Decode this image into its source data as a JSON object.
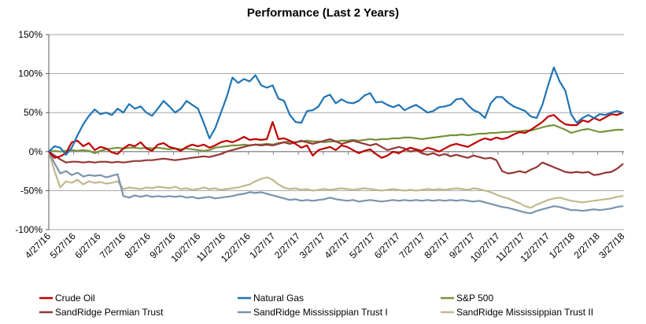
{
  "chart_data": {
    "type": "line",
    "title": "Performance (Last 2 Years)",
    "grid": "horizontal",
    "legend_position": "bottom",
    "x_frequency": "weekly",
    "y_axis": {
      "tick_labels": [
        "150%",
        "100%",
        "50%",
        "0%",
        "-50%",
        "-100%"
      ],
      "tick_values": [
        150,
        100,
        50,
        0,
        -50,
        -100
      ],
      "min": -100,
      "max": 150
    },
    "x_axis": {
      "tick_labels": [
        "4/27/16",
        "5/27/16",
        "6/27/16",
        "7/27/16",
        "8/27/16",
        "9/27/16",
        "10/27/16",
        "11/27/16",
        "12/27/16",
        "1/27/17",
        "2/27/17",
        "3/27/17",
        "4/27/17",
        "5/27/17",
        "6/27/17",
        "7/27/17",
        "8/27/17",
        "9/27/17",
        "10/27/17",
        "11/27/17",
        "12/27/17",
        "1/27/18",
        "2/27/18",
        "3/27/18"
      ]
    },
    "colors": {
      "gridline": "#A6A6A6",
      "x_axis_line": "#808080",
      "y_axis_line": "#595959",
      "text": "#000000"
    },
    "series": [
      {
        "name": "Crude Oil",
        "color": "#C00000",
        "values": [
          0,
          -8,
          -6,
          -2,
          12,
          14,
          7,
          11,
          2,
          6,
          4,
          -1,
          -3,
          4,
          9,
          7,
          12,
          4,
          1,
          9,
          11,
          6,
          4,
          1,
          6,
          9,
          7,
          9,
          5,
          8,
          12,
          14,
          12,
          15,
          19,
          15,
          16,
          15,
          16,
          38,
          16,
          17,
          14,
          10,
          5,
          8,
          -5,
          2,
          4,
          6,
          2,
          8,
          6,
          2,
          -2,
          1,
          3,
          -3,
          -8,
          -5,
          0,
          -2,
          2,
          5,
          3,
          1,
          5,
          3,
          0,
          4,
          8,
          10,
          8,
          6,
          10,
          14,
          17,
          15,
          18,
          16,
          18,
          22,
          25,
          24,
          28,
          33,
          38,
          45,
          47,
          40,
          35,
          34,
          34,
          40,
          38,
          43,
          40,
          44,
          48,
          47,
          50
        ]
      },
      {
        "name": "Natural Gas",
        "color": "#1F74B4",
        "values": [
          0,
          7,
          5,
          -4,
          5,
          21,
          35,
          46,
          54,
          48,
          50,
          47,
          55,
          50,
          61,
          55,
          58,
          50,
          46,
          55,
          65,
          58,
          50,
          55,
          65,
          60,
          55,
          37,
          17,
          30,
          50,
          70,
          95,
          88,
          93,
          90,
          98,
          85,
          82,
          85,
          68,
          65,
          47,
          38,
          37,
          52,
          53,
          58,
          70,
          73,
          62,
          67,
          63,
          62,
          65,
          72,
          75,
          63,
          64,
          60,
          57,
          60,
          53,
          57,
          60,
          55,
          50,
          52,
          57,
          58,
          60,
          67,
          68,
          60,
          53,
          50,
          43,
          62,
          70,
          70,
          63,
          58,
          55,
          52,
          45,
          43,
          60,
          85,
          108,
          90,
          78,
          48,
          37,
          43,
          47,
          43,
          48,
          47,
          50,
          52,
          50
        ]
      },
      {
        "name": "S&P 500",
        "color": "#76933C",
        "values": [
          0,
          1,
          0,
          1,
          2,
          1,
          2,
          1,
          -2,
          1,
          3,
          4,
          5,
          4,
          5,
          5,
          4,
          5,
          4,
          5,
          4,
          3,
          4,
          3,
          4,
          3,
          2,
          1,
          2,
          5,
          6,
          7,
          8,
          8,
          9,
          8,
          9,
          9,
          10,
          9,
          11,
          12,
          13,
          12,
          13,
          14,
          13,
          13,
          12,
          13,
          13,
          14,
          14,
          15,
          14,
          15,
          16,
          15,
          16,
          16,
          17,
          17,
          18,
          18,
          17,
          16,
          17,
          18,
          19,
          20,
          21,
          21,
          22,
          21,
          22,
          23,
          23,
          24,
          24,
          25,
          25,
          26,
          26,
          27,
          27,
          29,
          31,
          33,
          34,
          31,
          28,
          24,
          26,
          28,
          29,
          27,
          25,
          26,
          27,
          28,
          28
        ]
      },
      {
        "name": "SandRidge Permian Trust",
        "color": "#953735",
        "values": [
          0,
          -5,
          -10,
          -14,
          -13,
          -13,
          -14,
          -13,
          -14,
          -13,
          -13,
          -14,
          -13,
          -14,
          -13,
          -12,
          -12,
          -11,
          -11,
          -10,
          -9,
          -10,
          -11,
          -10,
          -9,
          -8,
          -7,
          -6,
          -7,
          -5,
          -3,
          0,
          2,
          4,
          6,
          8,
          9,
          8,
          9,
          8,
          10,
          12,
          10,
          12,
          14,
          12,
          10,
          12,
          14,
          16,
          13,
          10,
          12,
          14,
          12,
          10,
          8,
          10,
          6,
          2,
          4,
          6,
          4,
          0,
          2,
          -2,
          -4,
          -2,
          -5,
          -3,
          -6,
          -4,
          -6,
          -8,
          -5,
          -7,
          -9,
          -8,
          -11,
          -25,
          -28,
          -27,
          -25,
          -27,
          -23,
          -20,
          -14,
          -17,
          -20,
          -23,
          -26,
          -27,
          -26,
          -27,
          -26,
          -30,
          -29,
          -27,
          -26,
          -22,
          -16
        ]
      },
      {
        "name": "SandRidge Mississippian Trust I",
        "color": "#7A93AE",
        "values": [
          0,
          -15,
          -28,
          -25,
          -30,
          -27,
          -32,
          -30,
          -31,
          -30,
          -33,
          -31,
          -29,
          -57,
          -59,
          -56,
          -58,
          -56,
          -58,
          -57,
          -58,
          -57,
          -58,
          -57,
          -59,
          -58,
          -60,
          -59,
          -58,
          -60,
          -59,
          -58,
          -57,
          -55,
          -54,
          -52,
          -53,
          -52,
          -54,
          -56,
          -58,
          -60,
          -62,
          -61,
          -63,
          -62,
          -63,
          -62,
          -61,
          -59,
          -61,
          -62,
          -63,
          -62,
          -64,
          -63,
          -62,
          -63,
          -64,
          -63,
          -62,
          -63,
          -62,
          -63,
          -62,
          -63,
          -62,
          -63,
          -62,
          -63,
          -62,
          -63,
          -62,
          -63,
          -64,
          -63,
          -65,
          -67,
          -69,
          -71,
          -72,
          -74,
          -76,
          -78,
          -79,
          -76,
          -74,
          -72,
          -70,
          -71,
          -73,
          -75,
          -75,
          -76,
          -75,
          -74,
          -75,
          -74,
          -73,
          -71,
          -70
        ]
      },
      {
        "name": "SandRidge Mississippian Trust II",
        "color": "#C2B88E",
        "values": [
          0,
          -25,
          -46,
          -38,
          -40,
          -36,
          -42,
          -38,
          -40,
          -39,
          -41,
          -40,
          -38,
          -48,
          -46,
          -47,
          -48,
          -46,
          -47,
          -45,
          -46,
          -47,
          -45,
          -48,
          -47,
          -49,
          -48,
          -46,
          -48,
          -47,
          -49,
          -48,
          -47,
          -46,
          -44,
          -42,
          -38,
          -35,
          -33,
          -36,
          -42,
          -46,
          -48,
          -47,
          -49,
          -48,
          -50,
          -49,
          -48,
          -49,
          -48,
          -47,
          -48,
          -49,
          -48,
          -47,
          -48,
          -49,
          -50,
          -49,
          -48,
          -49,
          -50,
          -49,
          -50,
          -49,
          -48,
          -49,
          -48,
          -49,
          -48,
          -47,
          -48,
          -49,
          -47,
          -48,
          -50,
          -52,
          -55,
          -58,
          -60,
          -63,
          -66,
          -70,
          -72,
          -68,
          -65,
          -62,
          -60,
          -59,
          -61,
          -63,
          -64,
          -65,
          -64,
          -63,
          -62,
          -61,
          -60,
          -58,
          -57
        ]
      }
    ],
    "legend": {
      "rows": 2,
      "columns": 3,
      "order": [
        "Crude Oil",
        "Natural Gas",
        "S&P 500",
        "SandRidge Permian Trust",
        "SandRidge Mississippian Trust I",
        "SandRidge Mississippian Trust II"
      ]
    }
  }
}
